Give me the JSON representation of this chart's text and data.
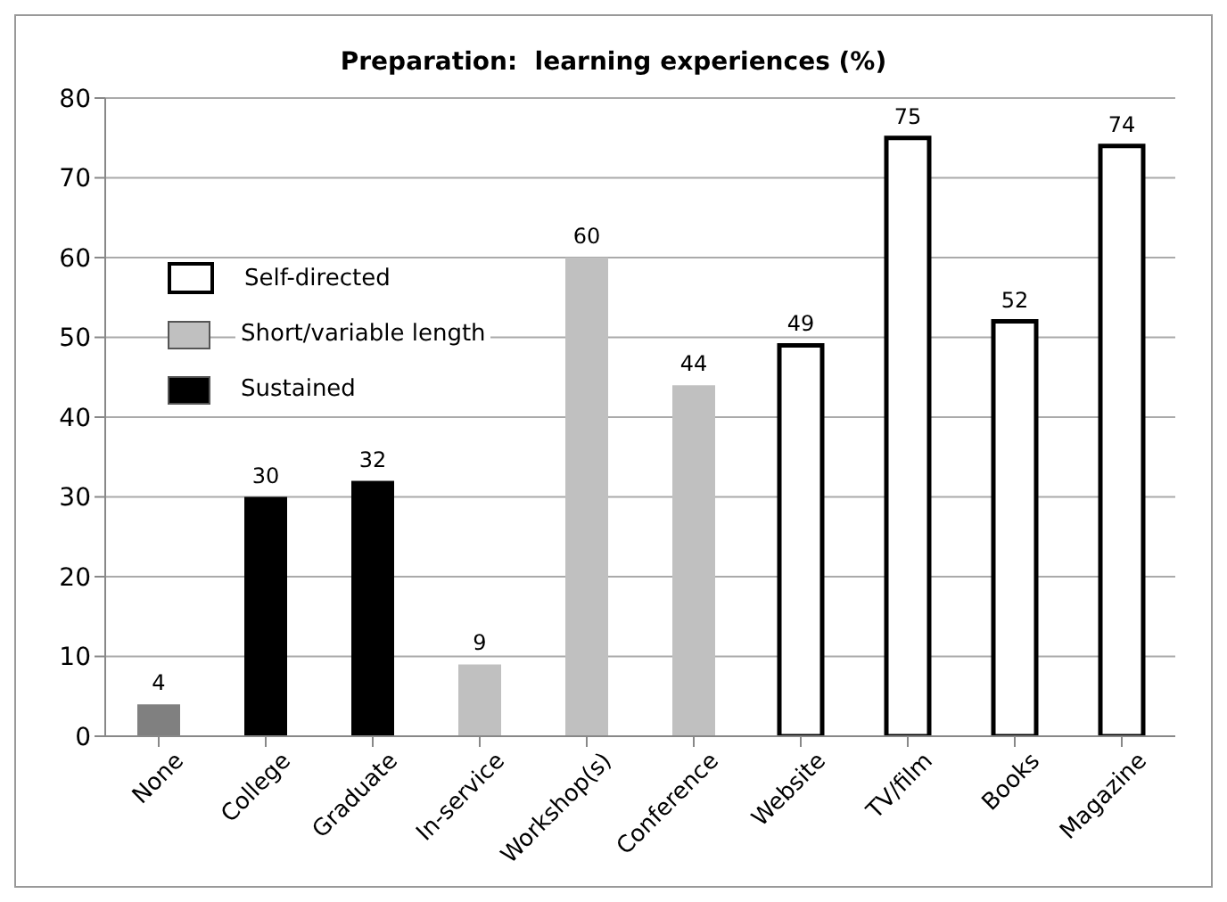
{
  "chart_data": {
    "type": "bar",
    "title": "Preparation:  learning experiences (%)",
    "categories": [
      "None",
      "College",
      "Graduate",
      "In-service",
      "Workshop(s)",
      "Conference",
      "Website",
      "TV/film",
      "Books",
      "Magazine"
    ],
    "series": [
      {
        "name": "Self-directed",
        "color": "#ffffff",
        "values": [
          null,
          null,
          null,
          null,
          null,
          null,
          49,
          75,
          52,
          74
        ]
      },
      {
        "name": "Short/variable length",
        "color": "#c0c0c0",
        "values": [
          null,
          null,
          null,
          9,
          60,
          44,
          null,
          null,
          null,
          null
        ]
      },
      {
        "name": "Sustained",
        "color": "#000000",
        "values": [
          null,
          30,
          32,
          null,
          null,
          null,
          null,
          null,
          null,
          null
        ]
      },
      {
        "color": "#808080",
        "values": [
          4,
          null,
          null,
          null,
          null,
          null,
          null,
          null,
          null,
          null
        ]
      }
    ],
    "stacked": true,
    "data_labels": true,
    "ylim": [
      0,
      80
    ],
    "yticks": [
      0,
      10,
      20,
      30,
      40,
      50,
      60,
      70,
      80
    ],
    "grid": "y",
    "legend": "top left"
  }
}
